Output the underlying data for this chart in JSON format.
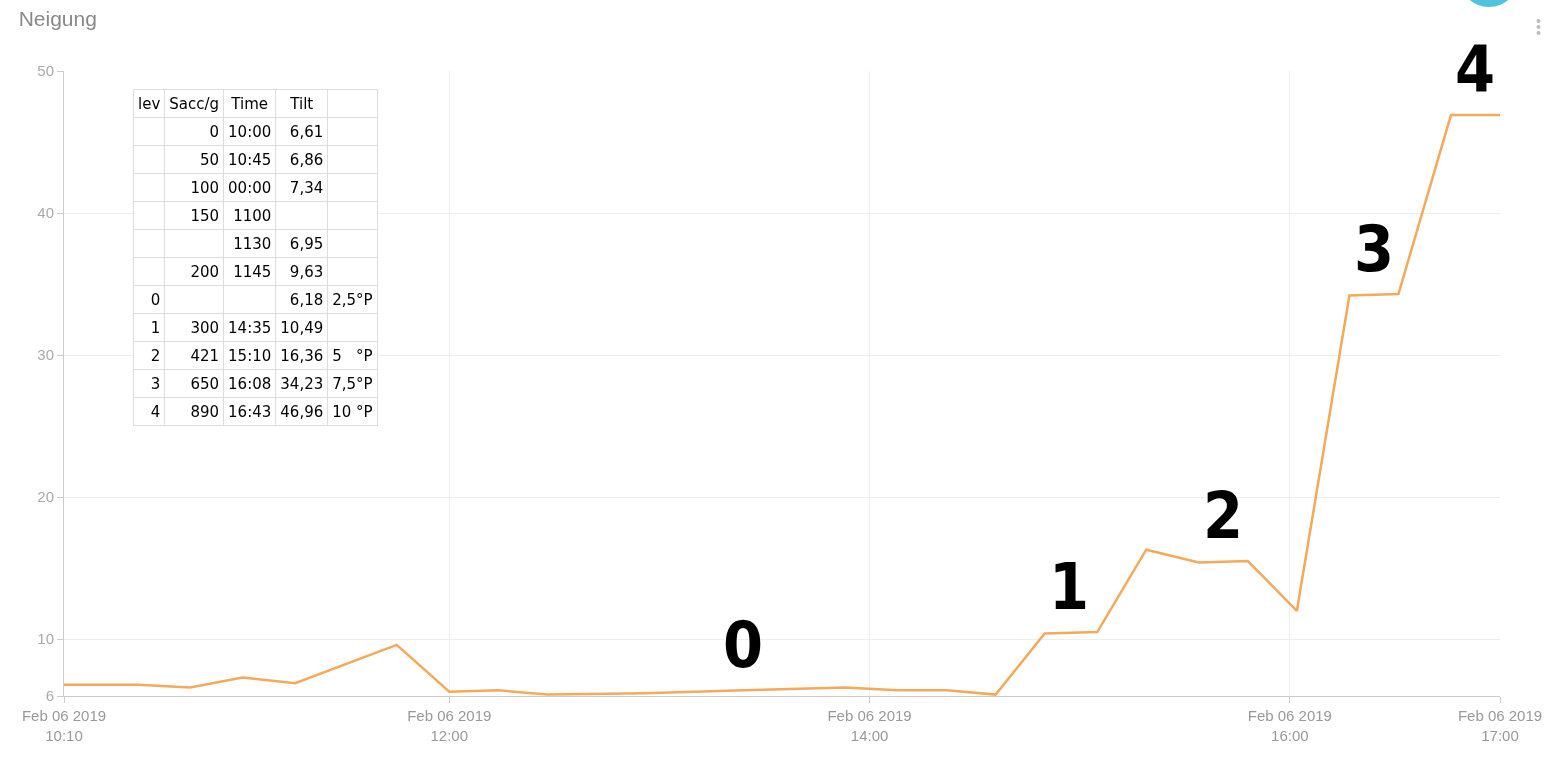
{
  "chart_data": {
    "type": "line",
    "title": "Neigung",
    "x": [
      "2019-02-06T10:10",
      "2019-02-06T10:31",
      "2019-02-06T10:46",
      "2019-02-06T11:01",
      "2019-02-06T11:16",
      "2019-02-06T11:45",
      "2019-02-06T12:00",
      "2019-02-06T12:14",
      "2019-02-06T12:28",
      "2019-02-06T12:56",
      "2019-02-06T13:24",
      "2019-02-06T13:53",
      "2019-02-06T14:08",
      "2019-02-06T14:22",
      "2019-02-06T14:36",
      "2019-02-06T14:50",
      "2019-02-06T15:05",
      "2019-02-06T15:19",
      "2019-02-06T15:34",
      "2019-02-06T15:48",
      "2019-02-06T16:02",
      "2019-02-06T16:17",
      "2019-02-06T16:31",
      "2019-02-06T16:46",
      "2019-02-06T17:00"
    ],
    "series": [
      {
        "color": "#f5a95a",
        "values": [
          6.8,
          6.8,
          6.6,
          7.3,
          6.9,
          9.6,
          6.3,
          6.4,
          6.1,
          6.2,
          6.4,
          6.6,
          6.4,
          6.4,
          6.1,
          10.4,
          10.5,
          16.3,
          15.4,
          15.5,
          12.0,
          34.2,
          34.3,
          46.9,
          46.9
        ]
      }
    ],
    "xlim": [
      "2019-02-06T10:10",
      "2019-02-06T17:00"
    ],
    "xticks": [
      {
        "value": "2019-02-06T10:10",
        "label": "Feb 06 2019\n10:10"
      },
      {
        "value": "2019-02-06T12:00",
        "label": "Feb 06 2019\n12:00"
      },
      {
        "value": "2019-02-06T14:00",
        "label": "Feb 06 2019\n14:00"
      },
      {
        "value": "2019-02-06T16:00",
        "label": "Feb 06 2019\n16:00"
      },
      {
        "value": "2019-02-06T17:00",
        "label": "Feb 06 2019\n17:00"
      }
    ],
    "ylim": [
      6,
      50
    ],
    "yticks": [
      6,
      10,
      20,
      30,
      40,
      50
    ],
    "grid": true,
    "legend": false,
    "marker": "none",
    "line_style": "solid",
    "annotations": [
      {
        "text": "0",
        "x": "2019-02-06T13:24",
        "y": 6.4
      },
      {
        "text": "1",
        "x": "2019-02-06T14:57",
        "y": 10.5
      },
      {
        "text": "2",
        "x": "2019-02-06T15:41",
        "y": 15.5
      },
      {
        "text": "3",
        "x": "2019-02-06T16:24",
        "y": 34.3
      },
      {
        "text": "4",
        "x": "2019-02-06T16:53",
        "y": 46.9
      },
      "lev",
      "Sacc/g",
      "Time",
      "Tilt",
      null,
      null,
      "0",
      "10:00",
      "6,61",
      null,
      null,
      "50",
      "10:45",
      "6,86",
      null,
      null,
      "100",
      "00:00",
      "7,34",
      null,
      null,
      "150",
      "1100",
      null,
      null,
      null,
      null,
      "1130",
      "6,95",
      null,
      null,
      "200",
      "1145",
      "9,63",
      null,
      "0",
      null,
      null,
      "6,18",
      "2,5°P",
      "1",
      "300",
      "14:35",
      "10,49",
      null,
      "2",
      "421",
      "15:10",
      "16,36",
      "5   °P",
      "3",
      "650",
      "16:08",
      "34,23",
      "7,5°P",
      "4",
      "890",
      "16:43",
      "46,96",
      "10 °P"
    ]
  }
}
